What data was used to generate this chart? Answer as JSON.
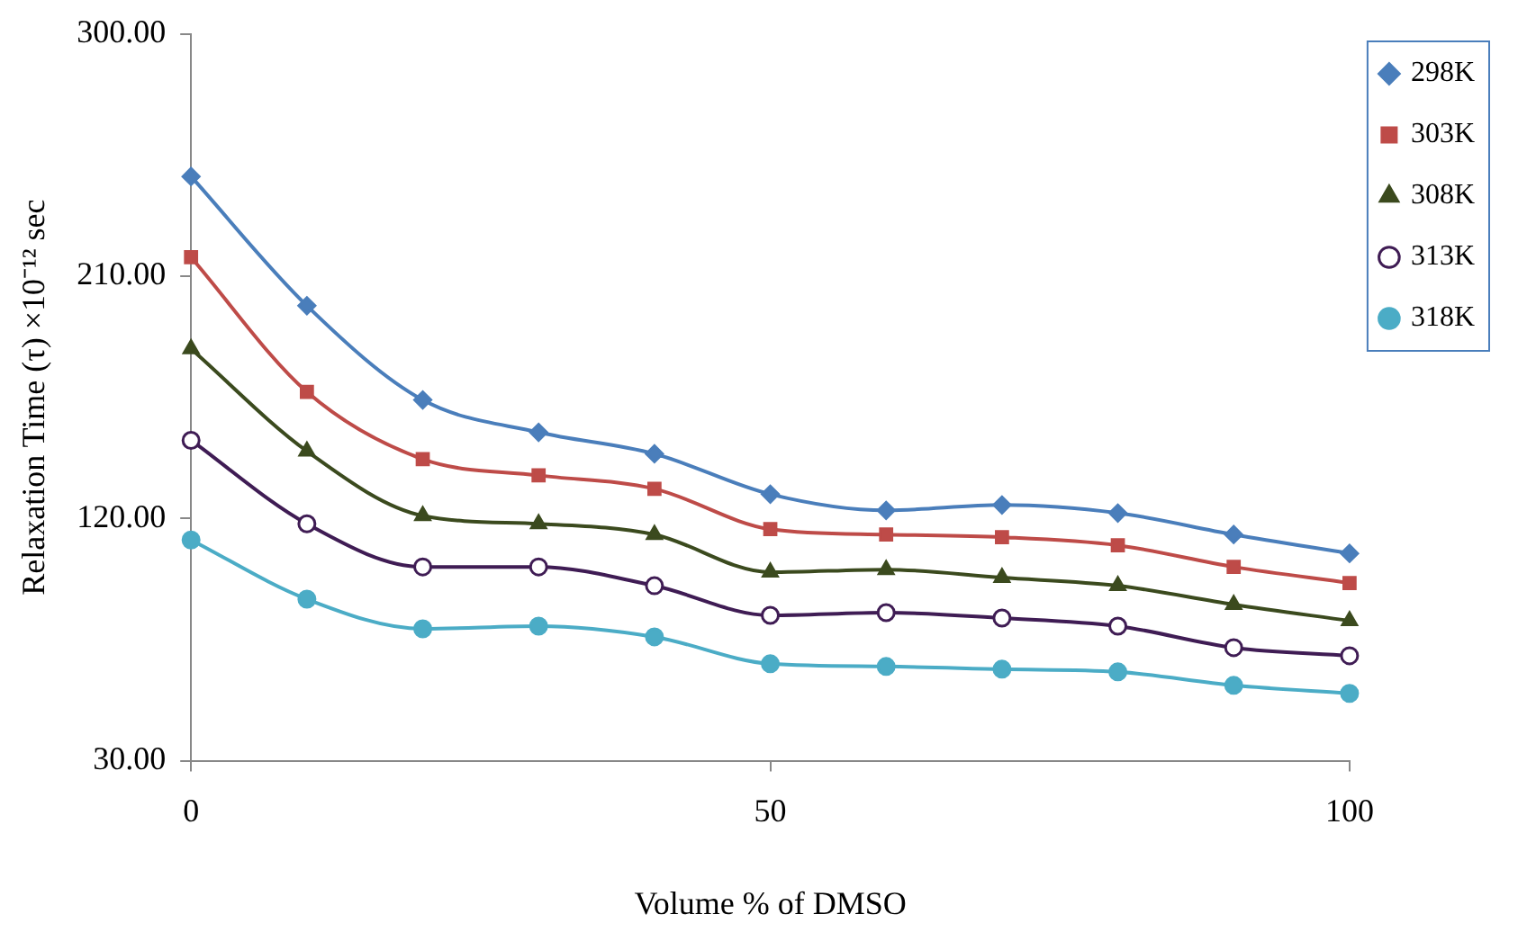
{
  "chart_data": {
    "type": "line",
    "xlabel": "Volume % of DMSO",
    "ylabel": "Relaxation Time (τ) ×10⁻¹² sec",
    "x": [
      0,
      10,
      20,
      30,
      40,
      50,
      60,
      70,
      80,
      90,
      100
    ],
    "series": [
      {
        "name": "298K",
        "color": "#4a7ebb",
        "marker": "diamond",
        "values": [
          247,
          199,
          164,
          152,
          144,
          129,
          123,
          125,
          122,
          114,
          107
        ]
      },
      {
        "name": "303K",
        "color": "#be4b48",
        "marker": "square",
        "values": [
          217,
          167,
          142,
          136,
          131,
          116,
          114,
          113,
          110,
          102,
          96
        ]
      },
      {
        "name": "308K",
        "color": "#3b4a1e",
        "marker": "triangle",
        "values": [
          183,
          145,
          121,
          118,
          114,
          100,
          101,
          98,
          95,
          88,
          82
        ]
      },
      {
        "name": "313K",
        "color": "#3f1c54",
        "marker": "circle",
        "values": [
          149,
          118,
          102,
          102,
          95,
          84,
          85,
          83,
          80,
          72,
          69
        ]
      },
      {
        "name": "318K",
        "color": "#4bacc6",
        "marker": "circle",
        "values": [
          112,
          90,
          79,
          80,
          76,
          66,
          65,
          64,
          63,
          58,
          55
        ]
      }
    ],
    "xlim": [
      0,
      100
    ],
    "xticks": [
      0,
      50,
      100
    ],
    "ylim": [
      30,
      300
    ],
    "yticks": [
      {
        "value": 30,
        "label": "30.00"
      },
      {
        "value": 120,
        "label": "120.00"
      },
      {
        "value": 210,
        "label": "210.00"
      },
      {
        "value": 300,
        "label": "300.00"
      }
    ],
    "grid": false,
    "legend": "top right"
  }
}
